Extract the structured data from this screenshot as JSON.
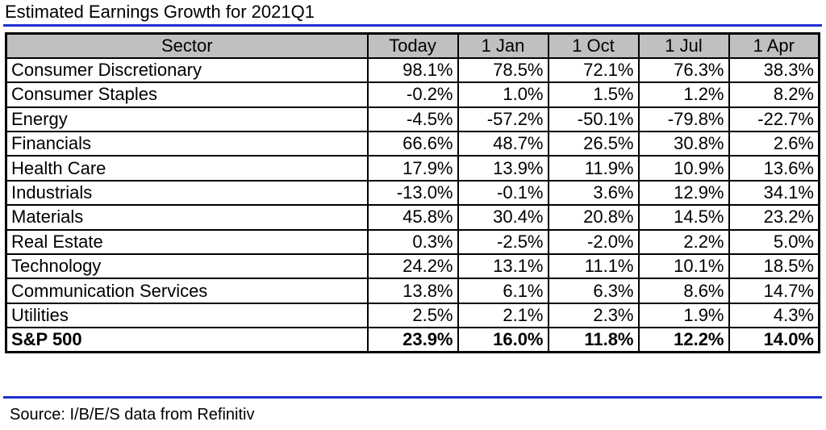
{
  "title": "Estimated Earnings Growth for 2021Q1",
  "colors": {
    "rule": "#1f2fd1",
    "header_bg": "#c0c0c0",
    "border": "#000000"
  },
  "table": {
    "headers": [
      "Sector",
      "Today",
      "1 Jan",
      "1 Oct",
      "1 Jul",
      "1 Apr"
    ],
    "rows": [
      {
        "sector": "Consumer Discretionary",
        "values": [
          "98.1%",
          "78.5%",
          "72.1%",
          "76.3%",
          "38.3%"
        ]
      },
      {
        "sector": "Consumer Staples",
        "values": [
          "-0.2%",
          "1.0%",
          "1.5%",
          "1.2%",
          "8.2%"
        ]
      },
      {
        "sector": "Energy",
        "values": [
          "-4.5%",
          "-57.2%",
          "-50.1%",
          "-79.8%",
          "-22.7%"
        ]
      },
      {
        "sector": "Financials",
        "values": [
          "66.6%",
          "48.7%",
          "26.5%",
          "30.8%",
          "2.6%"
        ]
      },
      {
        "sector": "Health Care",
        "values": [
          "17.9%",
          "13.9%",
          "11.9%",
          "10.9%",
          "13.6%"
        ]
      },
      {
        "sector": "Industrials",
        "values": [
          "-13.0%",
          "-0.1%",
          "3.6%",
          "12.9%",
          "34.1%"
        ]
      },
      {
        "sector": "Materials",
        "values": [
          "45.8%",
          "30.4%",
          "20.8%",
          "14.5%",
          "23.2%"
        ]
      },
      {
        "sector": "Real Estate",
        "values": [
          "0.3%",
          "-2.5%",
          "-2.0%",
          "2.2%",
          "5.0%"
        ]
      },
      {
        "sector": "Technology",
        "values": [
          "24.2%",
          "13.1%",
          "11.1%",
          "10.1%",
          "18.5%"
        ]
      },
      {
        "sector": "Communication Services",
        "values": [
          "13.8%",
          "6.1%",
          "6.3%",
          "8.6%",
          "14.7%"
        ]
      },
      {
        "sector": "Utilities",
        "values": [
          "2.5%",
          "2.1%",
          "2.3%",
          "1.9%",
          "4.3%"
        ]
      }
    ],
    "total": {
      "sector": "S&P 500",
      "values": [
        "23.9%",
        "16.0%",
        "11.8%",
        "12.2%",
        "14.0%"
      ]
    }
  },
  "source": "Source: I/B/E/S data from Refinitiv"
}
